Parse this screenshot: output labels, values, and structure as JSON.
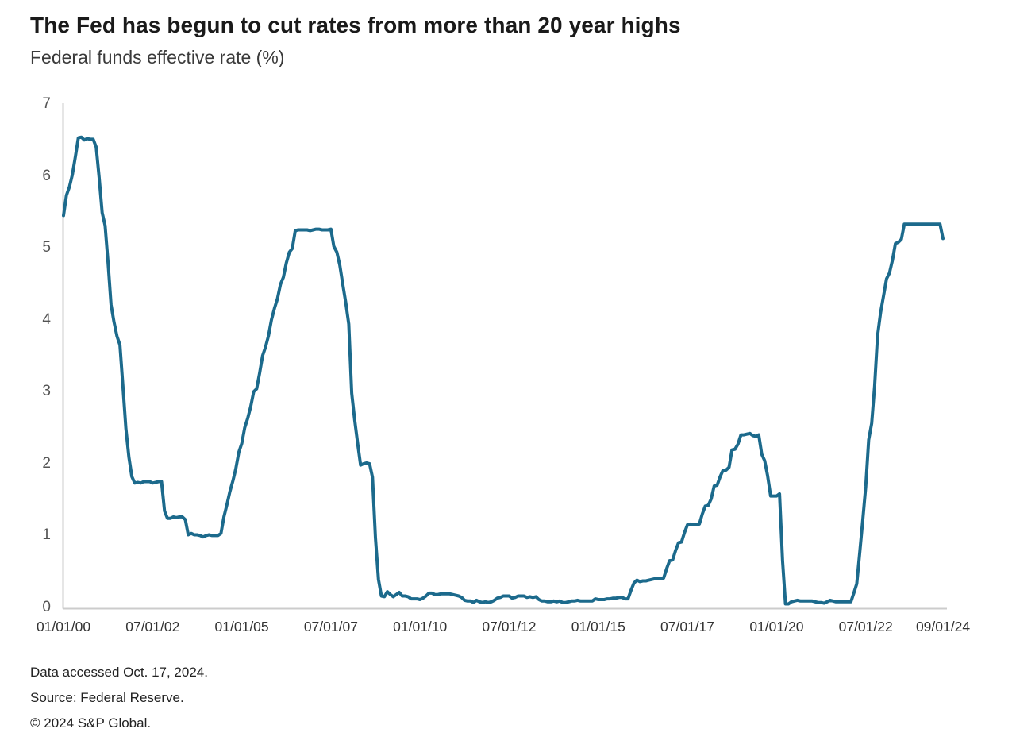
{
  "header": {
    "title": "The Fed has begun to cut rates from more than 20 year highs",
    "subtitle": "Federal funds effective rate (%)"
  },
  "footer": {
    "lines": [
      "Data accessed Oct. 17, 2024.",
      "Source: Federal Reserve.",
      "© 2024 S&P Global."
    ]
  },
  "chart_data": {
    "type": "line",
    "title": "The Fed has begun to cut rates from more than 20 year highs",
    "ylabel": "Federal funds effective rate (%)",
    "xlabel": "",
    "frequency": "monthly",
    "start_date": "2000-01-01",
    "end_date": "2024-09-01",
    "ylim": [
      0,
      7
    ],
    "y_ticks": [
      0,
      1,
      2,
      3,
      4,
      5,
      6,
      7
    ],
    "grid": "off",
    "legend": "none",
    "line_color": "#1c6a8c",
    "y_axis_line_color": "#ababab",
    "x_axis_line_color": "#cccccc",
    "x_ticks": [
      {
        "label": "01/01/00",
        "month": 0
      },
      {
        "label": "07/01/02",
        "month": 30
      },
      {
        "label": "01/01/05",
        "month": 60
      },
      {
        "label": "07/01/07",
        "month": 90
      },
      {
        "label": "01/01/10",
        "month": 120
      },
      {
        "label": "07/01/12",
        "month": 150
      },
      {
        "label": "01/01/15",
        "month": 180
      },
      {
        "label": "07/01/17",
        "month": 210
      },
      {
        "label": "01/01/20",
        "month": 240
      },
      {
        "label": "07/01/22",
        "month": 270
      },
      {
        "label": "09/01/24",
        "month": 296
      }
    ],
    "values": [
      5.45,
      5.73,
      5.85,
      6.02,
      6.27,
      6.53,
      6.54,
      6.5,
      6.52,
      6.51,
      6.51,
      6.4,
      5.98,
      5.49,
      5.31,
      4.8,
      4.21,
      3.97,
      3.77,
      3.65,
      3.07,
      2.49,
      2.09,
      1.82,
      1.73,
      1.74,
      1.73,
      1.75,
      1.75,
      1.75,
      1.73,
      1.74,
      1.75,
      1.75,
      1.34,
      1.24,
      1.24,
      1.26,
      1.25,
      1.26,
      1.26,
      1.22,
      1.01,
      1.03,
      1.01,
      1.01,
      1.0,
      0.98,
      1.0,
      1.01,
      1.0,
      1.0,
      1.0,
      1.03,
      1.26,
      1.43,
      1.61,
      1.76,
      1.93,
      2.16,
      2.28,
      2.5,
      2.63,
      2.79,
      3.0,
      3.04,
      3.26,
      3.5,
      3.62,
      3.78,
      4.0,
      4.16,
      4.29,
      4.49,
      4.59,
      4.79,
      4.94,
      4.99,
      5.24,
      5.25,
      5.25,
      5.25,
      5.25,
      5.24,
      5.25,
      5.26,
      5.26,
      5.25,
      5.25,
      5.25,
      5.26,
      5.02,
      4.94,
      4.76,
      4.49,
      4.24,
      3.94,
      2.98,
      2.61,
      2.28,
      1.98,
      2.0,
      2.01,
      2.0,
      1.81,
      0.97,
      0.39,
      0.16,
      0.15,
      0.22,
      0.18,
      0.15,
      0.18,
      0.21,
      0.16,
      0.16,
      0.15,
      0.12,
      0.12,
      0.12,
      0.11,
      0.13,
      0.16,
      0.2,
      0.2,
      0.18,
      0.18,
      0.19,
      0.19,
      0.19,
      0.19,
      0.18,
      0.17,
      0.16,
      0.14,
      0.1,
      0.09,
      0.09,
      0.07,
      0.1,
      0.08,
      0.07,
      0.08,
      0.07,
      0.08,
      0.1,
      0.13,
      0.14,
      0.16,
      0.16,
      0.16,
      0.13,
      0.14,
      0.16,
      0.16,
      0.16,
      0.14,
      0.15,
      0.14,
      0.15,
      0.11,
      0.09,
      0.09,
      0.08,
      0.08,
      0.09,
      0.08,
      0.09,
      0.07,
      0.07,
      0.08,
      0.09,
      0.09,
      0.1,
      0.09,
      0.09,
      0.09,
      0.09,
      0.09,
      0.12,
      0.11,
      0.11,
      0.11,
      0.12,
      0.12,
      0.13,
      0.13,
      0.14,
      0.14,
      0.12,
      0.12,
      0.24,
      0.34,
      0.38,
      0.36,
      0.37,
      0.37,
      0.38,
      0.39,
      0.4,
      0.4,
      0.4,
      0.41,
      0.54,
      0.65,
      0.66,
      0.79,
      0.9,
      0.91,
      1.04,
      1.15,
      1.16,
      1.15,
      1.15,
      1.16,
      1.3,
      1.41,
      1.42,
      1.51,
      1.69,
      1.7,
      1.82,
      1.91,
      1.91,
      1.95,
      2.19,
      2.2,
      2.27,
      2.4,
      2.4,
      2.41,
      2.42,
      2.39,
      2.38,
      2.4,
      2.13,
      2.04,
      1.83,
      1.55,
      1.55,
      1.55,
      1.58,
      0.65,
      0.05,
      0.05,
      0.08,
      0.09,
      0.1,
      0.09,
      0.09,
      0.09,
      0.09,
      0.09,
      0.08,
      0.07,
      0.07,
      0.06,
      0.08,
      0.1,
      0.09,
      0.08,
      0.08,
      0.08,
      0.08,
      0.08,
      0.08,
      0.2,
      0.33,
      0.77,
      1.21,
      1.68,
      2.33,
      2.56,
      3.08,
      3.78,
      4.1,
      4.33,
      4.57,
      4.65,
      4.83,
      5.06,
      5.08,
      5.12,
      5.33,
      5.33,
      5.33,
      5.33,
      5.33,
      5.33,
      5.33,
      5.33,
      5.33,
      5.33,
      5.33,
      5.33,
      5.33,
      5.13
    ]
  }
}
